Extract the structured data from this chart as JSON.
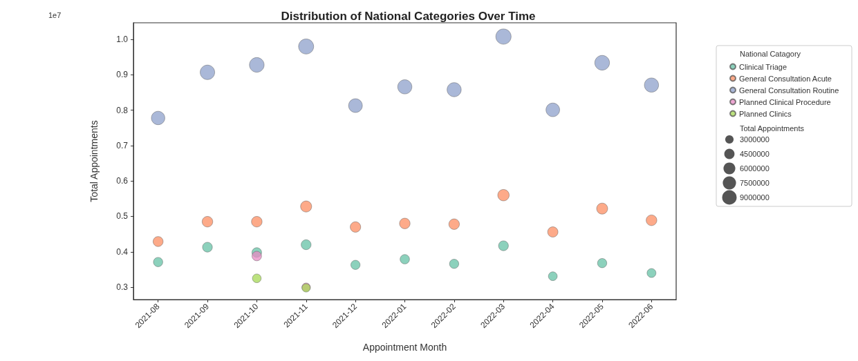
{
  "chart_data": {
    "type": "bubble",
    "title": "Distribution of National Categories Over Time",
    "xlabel": "Appointment Month",
    "ylabel": "Total Appointments",
    "legend_title": "National Catagory",
    "categories": [
      "2021-08",
      "2021-09",
      "2021-10",
      "2021-11",
      "2021-12",
      "2022-01",
      "2022-02",
      "2022-03",
      "2022-04",
      "2022-05",
      "2022-06"
    ],
    "series": [
      {
        "name": "Clinical Triage",
        "color": "#66c2a5",
        "values": [
          0.371,
          0.413,
          0.398,
          0.42,
          0.363,
          0.379,
          0.366,
          0.417,
          0.331,
          0.368,
          0.34
        ],
        "sizes": [
          3710000,
          4130000,
          3980000,
          4200000,
          3630000,
          3790000,
          3660000,
          4170000,
          3310000,
          3680000,
          3400000
        ]
      },
      {
        "name": "General Consultation Acute",
        "color": "#fc8d62",
        "values": [
          0.429,
          0.485,
          0.485,
          0.528,
          0.47,
          0.48,
          0.478,
          0.56,
          0.456,
          0.522,
          0.489
        ],
        "sizes": [
          4290000,
          4850000,
          4850000,
          5280000,
          4700000,
          4800000,
          4780000,
          5600000,
          4560000,
          5220000,
          4890000
        ]
      },
      {
        "name": "General Consultation Routine",
        "color": "#8da0cb",
        "values": [
          0.778,
          0.907,
          0.928,
          0.98,
          0.813,
          0.866,
          0.858,
          1.008,
          0.801,
          0.934,
          0.871
        ],
        "sizes": [
          7780000,
          9070000,
          9280000,
          9800000,
          8130000,
          8660000,
          8580000,
          10080000,
          8010000,
          9340000,
          8710000
        ]
      },
      {
        "name": "Planned Clinical Procedure",
        "color": "#e78ac3",
        "values": [
          null,
          null,
          0.388,
          0.3,
          null,
          null,
          null,
          null,
          null,
          null,
          null
        ],
        "sizes": [
          null,
          null,
          3880000,
          3000000,
          null,
          null,
          null,
          null,
          null,
          null,
          null
        ]
      },
      {
        "name": "Planned Clinics",
        "color": "#a6d854",
        "values": [
          null,
          null,
          0.325,
          0.298,
          null,
          null,
          null,
          null,
          null,
          null,
          null
        ],
        "sizes": [
          null,
          null,
          3250000,
          2980000,
          null,
          null,
          null,
          null,
          null,
          null,
          null
        ]
      }
    ],
    "size_legend": [
      3000000,
      4500000,
      6000000,
      7500000,
      9000000
    ],
    "ylim": [
      0.265,
      1.047
    ],
    "yticks": [
      0.3,
      0.4,
      0.5,
      0.6,
      0.7,
      0.8,
      0.9,
      {
        "value": 1,
        "label": "1.0"
      }
    ],
    "annotations": [
      "1e7",
      "Total Appointments"
    ],
    "legend": "top right",
    "marker": "circle"
  }
}
